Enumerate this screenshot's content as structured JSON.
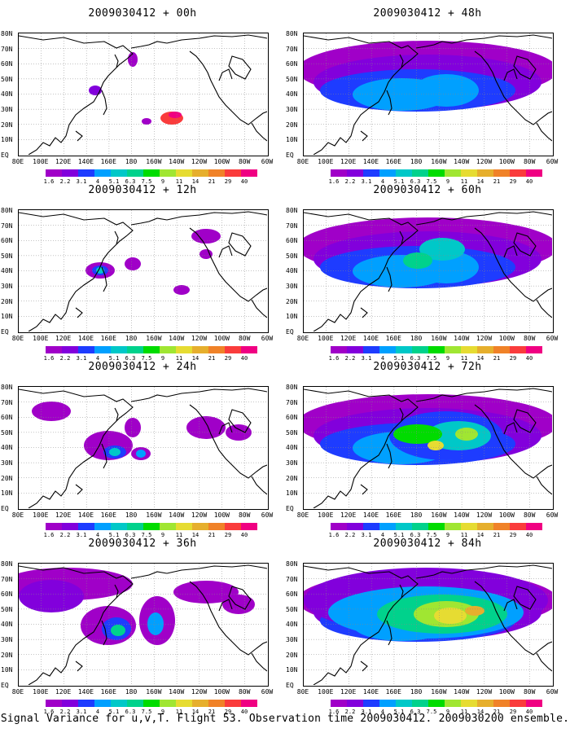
{
  "panels": [
    {
      "title": "2009030412 + 00h",
      "level": 0.0
    },
    {
      "title": "2009030412 + 48h",
      "level": 0.55
    },
    {
      "title": "2009030412 + 12h",
      "level": 0.12
    },
    {
      "title": "2009030412 + 60h",
      "level": 0.68
    },
    {
      "title": "2009030412 + 24h",
      "level": 0.28
    },
    {
      "title": "2009030412 + 72h",
      "level": 0.82
    },
    {
      "title": "2009030412 + 36h",
      "level": 0.42
    },
    {
      "title": "2009030412 + 84h",
      "level": 0.95
    }
  ],
  "lat_labels": [
    "80N",
    "70N",
    "60N",
    "50N",
    "40N",
    "30N",
    "20N",
    "10N",
    "EQ"
  ],
  "lon_labels": [
    "80E",
    "100E",
    "120E",
    "140E",
    "160E",
    "180",
    "160W",
    "140W",
    "120W",
    "100W",
    "80W",
    "60W"
  ],
  "colorbar": {
    "colors": [
      "#a000c8",
      "#8200dc",
      "#1e3cff",
      "#00a0ff",
      "#00c8c8",
      "#00d28c",
      "#00dc00",
      "#a0e632",
      "#e6dc32",
      "#e6af2d",
      "#f08228",
      "#fa3c3c",
      "#f00082"
    ],
    "labels": [
      "1.6",
      "2.2",
      "3.1",
      "4",
      "5.1",
      "6.3",
      "7.5",
      "9",
      "11",
      "14",
      "21",
      "29",
      "40"
    ]
  },
  "footer": "Signal Variance for u,v,T. Flight 53. Observation time 2009030412. 2009030200 ensemble."
}
